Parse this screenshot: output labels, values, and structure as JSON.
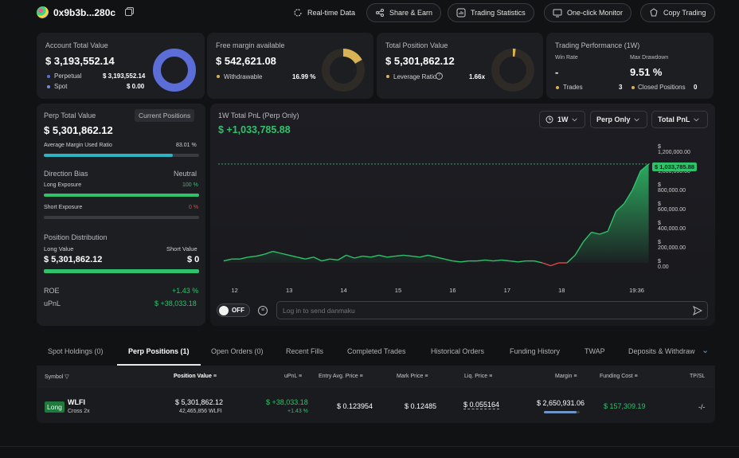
{
  "header": {
    "address": "0x9b3b...280c",
    "buttons": {
      "realtime": "Real-time Data",
      "share": "Share & Earn",
      "stats": "Trading Statistics",
      "monitor": "One-click Monitor",
      "copy": "Copy Trading"
    }
  },
  "account": {
    "title": "Account Total Value",
    "value": "$ 3,193,552.14",
    "perp_label": "Perpetual",
    "perp_value": "$ 3,193,552.14",
    "spot_label": "Spot",
    "spot_value": "$ 0.00",
    "colors": {
      "perp": "#5b6ed8",
      "spot": "#7a8ad8"
    }
  },
  "margin": {
    "title": "Free margin available",
    "value": "$ 542,621.08",
    "withdrawable_label": "Withdrawable",
    "withdrawable_value": "16.99 %",
    "fraction": 0.1699,
    "color": "#d9b255"
  },
  "position": {
    "title": "Total Position Value",
    "value": "$ 5,301,862.12",
    "leverage_label": "Leverage Ratio",
    "leverage_value": "1.66x",
    "color": "#d9b255"
  },
  "performance": {
    "title": "Trading Performance (1W)",
    "win_rate_label": "Win Rate",
    "win_rate_value": "-",
    "drawdown_label": "Max Drawdown",
    "drawdown_value": "9.51 %",
    "trades_label": "Trades",
    "trades_value": "3",
    "closed_label": "Closed Positions",
    "closed_value": "0"
  },
  "perp": {
    "title": "Perp Total Value",
    "current_btn": "Current Positions",
    "value": "$ 5,301,862.12",
    "avg_margin_label": "Average Margin Used Ratio",
    "avg_margin_value": "83.01 %",
    "avg_margin_fraction": 0.8301,
    "bias_label": "Direction Bias",
    "bias_value": "Neutral",
    "long_label": "Long Exposure",
    "long_value": "100 %",
    "long_fraction": 1.0,
    "short_label": "Short Exposure",
    "short_value": "0 %",
    "short_fraction": 0,
    "dist_label": "Position Distribution",
    "long_val_label": "Long Value",
    "short_val_label": "Short Value",
    "long_val": "$ 5,301,862.12",
    "short_val": "$ 0",
    "roe_label": "ROE",
    "roe_value": "+1.43 %",
    "upnl_label": "uPnL",
    "upnl_value": "$ +38,033.18"
  },
  "chart": {
    "title": "1W Total PnL (Perp Only)",
    "value": "$ +1,033,785.88",
    "range_select": "1W",
    "scope_select": "Perp Only",
    "metric_select": "Total PnL",
    "toggle_label": "OFF",
    "danmaku_placeholder": "Log in to send danmaku",
    "current_label": "$ 1,033,785.88",
    "line_color": "#2fc26a",
    "negative_color": "#e04848"
  },
  "chart_data": {
    "type": "area",
    "title": "1W Total PnL (Perp Only)",
    "x_ticks": [
      "12",
      "13",
      "14",
      "15",
      "16",
      "17",
      "18",
      "19:36"
    ],
    "y_ticks": [
      "$ 1,200,000.00",
      "$ 1,000,000.00",
      "$ 800,000.00",
      "$ 600,000.00",
      "$ 400,000.00",
      "$ 200,000.00",
      "$ 0.00"
    ],
    "ylim": [
      0,
      1200000
    ],
    "x": [
      11.8,
      11.95,
      12.1,
      12.25,
      12.4,
      12.55,
      12.7,
      12.85,
      13.0,
      13.15,
      13.3,
      13.45,
      13.6,
      13.75,
      13.9,
      14.05,
      14.2,
      14.35,
      14.5,
      14.65,
      14.8,
      14.95,
      15.1,
      15.25,
      15.4,
      15.55,
      15.7,
      15.85,
      16.0,
      16.15,
      16.3,
      16.45,
      16.6,
      16.75,
      16.9,
      17.05,
      17.2,
      17.35,
      17.5,
      17.65,
      17.8,
      17.95,
      18.1,
      18.25,
      18.4,
      18.55,
      18.7,
      18.85,
      19.0,
      19.15,
      19.3,
      19.45,
      19.6
    ],
    "values": [
      20000,
      40000,
      40000,
      60000,
      70000,
      90000,
      120000,
      100000,
      80000,
      60000,
      40000,
      60000,
      20000,
      40000,
      30000,
      80000,
      50000,
      70000,
      60000,
      80000,
      60000,
      70000,
      80000,
      70000,
      60000,
      80000,
      60000,
      40000,
      20000,
      10000,
      20000,
      20000,
      30000,
      20000,
      30000,
      20000,
      10000,
      20000,
      20000,
      0,
      -30000,
      0,
      0,
      80000,
      220000,
      320000,
      300000,
      330000,
      540000,
      620000,
      760000,
      960000,
      1033785.88
    ]
  },
  "tabs": [
    "Spot Holdings (0)",
    "Perp Positions (1)",
    "Open Orders (0)",
    "Recent Fills",
    "Completed Trades",
    "Historical Orders",
    "Funding History",
    "TWAP",
    "Deposits & Withdraw"
  ],
  "table": {
    "headers": {
      "symbol": "Symbol",
      "position_value": "Position Value",
      "upnl": "uPnL",
      "entry": "Entry Avg. Price",
      "mark": "Mark Price",
      "liq": "Liq. Price",
      "margin": "Margin",
      "funding": "Funding Cost",
      "tpsl": "TP/SL"
    },
    "row": {
      "side": "Long",
      "symbol": "WLFI",
      "mode": "Cross 2x",
      "position_value": "$ 5,301,862.12",
      "position_size": "42,465,856 WLFI",
      "upnl": "$ +38,033.18",
      "upnl_pct": "+1.43 %",
      "entry": "$ 0.123954",
      "mark": "$ 0.12485",
      "liq": "$ 0.055164",
      "margin": "$ 2,650,931.06",
      "funding": "$ 157,309.19",
      "tpsl": "-/-"
    }
  }
}
